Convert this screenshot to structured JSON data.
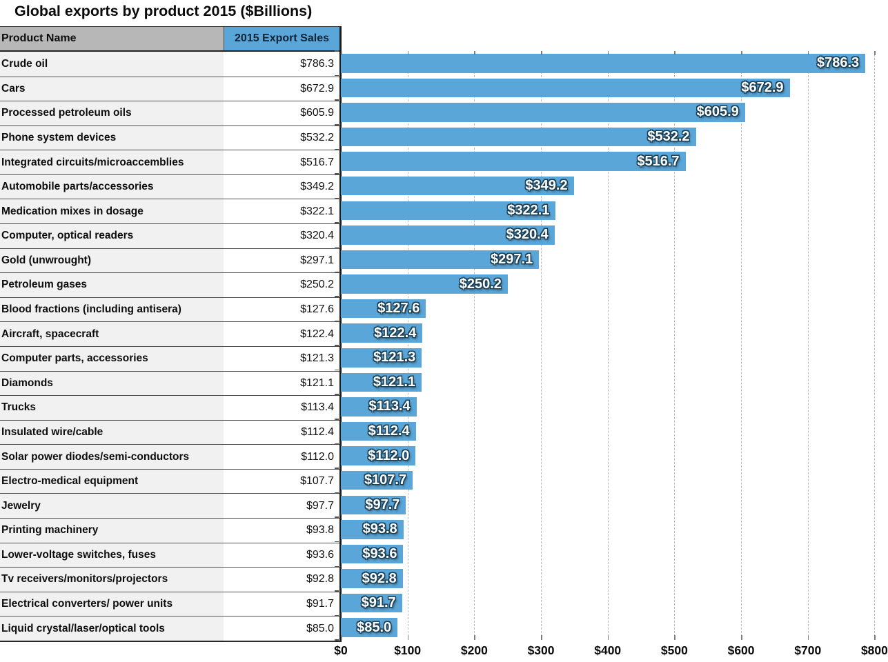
{
  "title": "Global exports by product 2015 ($Billions)",
  "table": {
    "columns": [
      "Product Name",
      "2015 Export Sales"
    ]
  },
  "colors": {
    "bar_blue": "#5aa6d8",
    "header_gray": "#b7b7b7",
    "row_gray": "#f1f1f1",
    "gridline_gray": "#b8b8b8",
    "bar_label_outline": "#1c4156"
  },
  "chart_data": {
    "type": "bar",
    "orientation": "horizontal",
    "title": "Global exports by product 2015 ($Billions)",
    "categories": [
      "Crude oil",
      "Cars",
      "Processed petroleum oils",
      "Phone system devices",
      "Integrated circuits/microaccemblies",
      "Automobile parts/accessories",
      "Medication mixes in dosage",
      "Computer, optical readers",
      "Gold (unwrought)",
      "Petroleum gases",
      "Blood fractions (including antisera)",
      "Aircraft, spacecraft",
      "Computer parts, accessories",
      "Diamonds",
      "Trucks",
      "Insulated wire/cable",
      "Solar power diodes/semi-conductors",
      "Electro-medical equipment",
      "Jewelry",
      "Printing machinery",
      "Lower-voltage switches, fuses",
      "Tv receivers/monitors/projectors",
      "Electrical converters/ power units",
      "Liquid crystal/laser/optical tools"
    ],
    "values": [
      786.3,
      672.9,
      605.9,
      532.2,
      516.7,
      349.2,
      322.1,
      320.4,
      297.1,
      250.2,
      127.6,
      122.4,
      121.3,
      121.1,
      113.4,
      112.4,
      112.0,
      107.7,
      97.7,
      93.8,
      93.6,
      92.8,
      91.7,
      85.0
    ],
    "value_labels": [
      "$786.3",
      "$672.9",
      "$605.9",
      "$532.2",
      "$516.7",
      "$349.2",
      "$322.1",
      "$320.4",
      "$297.1",
      "$250.2",
      "$127.6",
      "$122.4",
      "$121.3",
      "$121.1",
      "$113.4",
      "$112.4",
      "$112.0",
      "$107.7",
      "$97.7",
      "$93.8",
      "$93.6",
      "$92.8",
      "$91.7",
      "$85.0"
    ],
    "x_tick_values": [
      0,
      100,
      200,
      300,
      400,
      500,
      600,
      700,
      800
    ],
    "x_tick_labels": [
      "$0",
      "$100",
      "$200",
      "$300",
      "$400",
      "$500",
      "$600",
      "$700",
      "$800"
    ],
    "xlim": [
      0,
      813
    ],
    "grid": "vertical dashed at every $100",
    "legend": "none",
    "value_label_position": "inside bar end"
  }
}
